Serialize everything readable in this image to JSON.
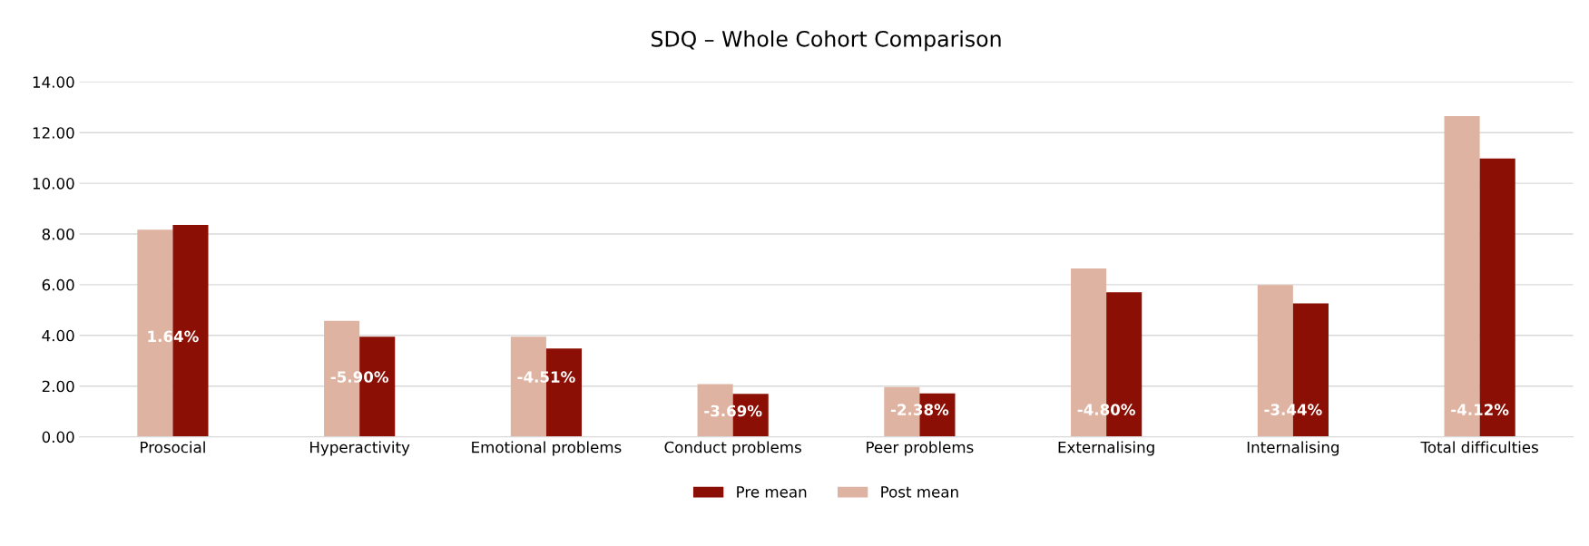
{
  "chart_data": {
    "type": "bar",
    "title": "SDQ – Whole Cohort Comparison",
    "categories": [
      "Prosocial",
      "Hyperactivity",
      "Emotional problems",
      "Conduct problems",
      "Peer problems",
      "Externalising",
      "Internalising",
      "Total difficulties"
    ],
    "series": [
      {
        "name": "Post mean",
        "color": "#dfb3a1",
        "values": [
          8.17,
          4.57,
          3.95,
          2.08,
          1.96,
          6.64,
          5.99,
          12.65
        ]
      },
      {
        "name": "Pre mean",
        "color": "#8b0f04",
        "values": [
          8.36,
          3.95,
          3.48,
          1.69,
          1.71,
          5.7,
          5.26,
          10.98
        ]
      }
    ],
    "ylim": [
      0,
      14
    ],
    "yticks": [
      {
        "value": 0,
        "label": "0.00"
      },
      {
        "value": 2,
        "label": "2.00"
      },
      {
        "value": 4,
        "label": "4.00"
      },
      {
        "value": 6,
        "label": "6.00"
      },
      {
        "value": 8,
        "label": "8.00"
      },
      {
        "value": 10,
        "label": "10.00"
      },
      {
        "value": 12,
        "label": "12.00"
      },
      {
        "value": 14,
        "label": "14.00"
      }
    ],
    "grid": "y",
    "legend": "bottom",
    "annotations": [
      {
        "text": "1.64%",
        "x": "Prosocial",
        "y": 3.91
      },
      {
        "text": "-5.90%",
        "x": "Hyperactivity",
        "y": 2.31
      },
      {
        "text": "-4.51%",
        "x": "Emotional problems",
        "y": 2.31
      },
      {
        "text": "-3.69%",
        "x": "Conduct problems",
        "y": 0.97
      },
      {
        "text": "-2.38%",
        "x": "Peer problems",
        "y": 1.02
      },
      {
        "text": "-4.80%",
        "x": "Externalising",
        "y": 1.02
      },
      {
        "text": "-3.44%",
        "x": "Internalising",
        "y": 1.02
      },
      {
        "text": "-4.12%",
        "x": "Total difficulties",
        "y": 1.02
      }
    ]
  }
}
